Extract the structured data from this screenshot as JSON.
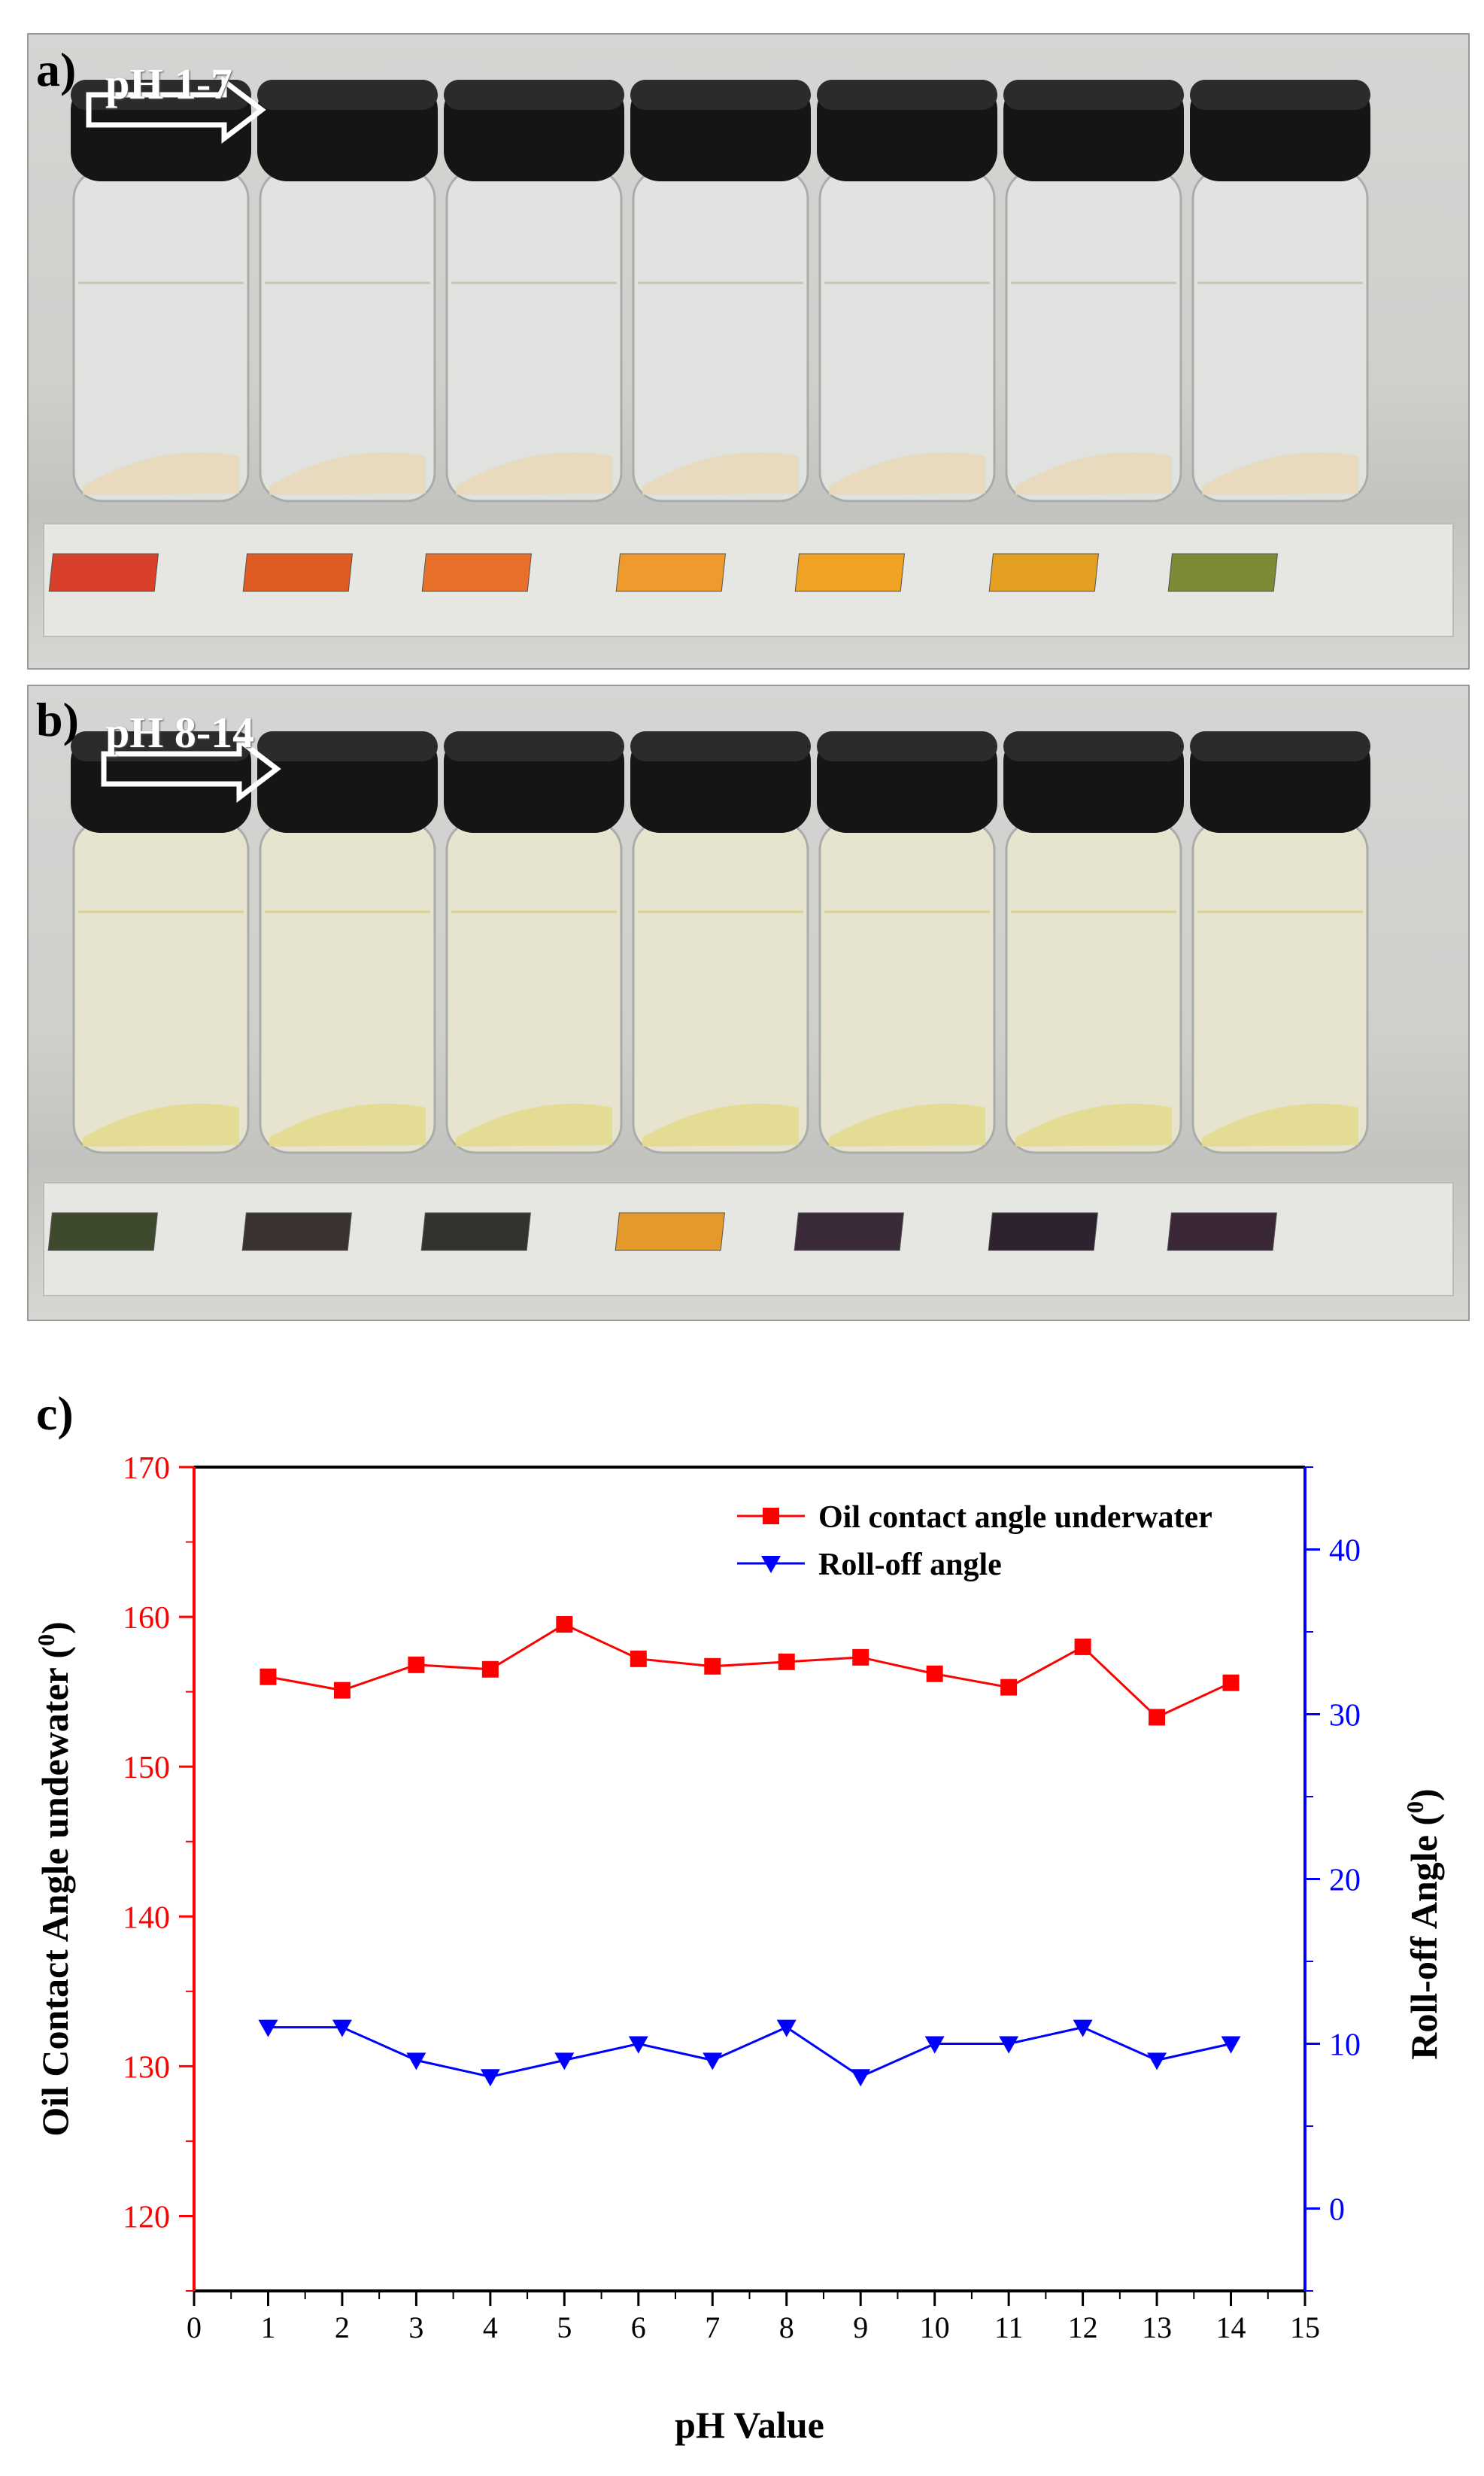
{
  "panel_a": {
    "letter": "a)",
    "ph_range_label": "pH 1-7",
    "vial_count": 7,
    "sample_colors": [
      "#d9402a",
      "#e05a24",
      "#e8702a",
      "#ee9a2c",
      "#f0a225",
      "#e4a020",
      "#7e8a35"
    ]
  },
  "panel_b": {
    "letter": "b)",
    "ph_range_label": "pH 8-14",
    "vial_count": 7,
    "sample_colors": [
      "#3d4a2e",
      "#3a3230",
      "#33332e",
      "#e39a2a",
      "#3b2b3a",
      "#2e2130",
      "#3a2738"
    ]
  },
  "chart_label": "c)",
  "chart_data": {
    "type": "line",
    "x": [
      1,
      2,
      3,
      4,
      5,
      6,
      7,
      8,
      9,
      10,
      11,
      12,
      13,
      14
    ],
    "series": [
      {
        "name": "Oil contact angle underwater",
        "axis": "left",
        "color": "#ff0000",
        "marker": "square",
        "values": [
          156.0,
          155.1,
          156.8,
          156.5,
          159.5,
          157.2,
          156.7,
          157.0,
          157.3,
          156.2,
          155.3,
          158.0,
          153.3,
          155.6
        ]
      },
      {
        "name": "Roll-off angle",
        "axis": "right",
        "color": "#0000ff",
        "marker": "triangle-down",
        "values": [
          11,
          11,
          9,
          8,
          9,
          10,
          9,
          11,
          8,
          10,
          10,
          11,
          9,
          10
        ]
      }
    ],
    "xlabel": "pH Value",
    "ylabel_left": "Oil Contact Angle undewater (",
    "ylabel_left_sup": "0",
    "ylabel_left_close": ")",
    "ylabel_right": "Roll-off Angle (",
    "ylabel_right_sup": "0",
    "ylabel_right_close": ")",
    "xlim": [
      0,
      15
    ],
    "ylim_left": [
      115,
      170
    ],
    "ylim_right": [
      -5,
      45
    ],
    "xticks": [
      0,
      1,
      2,
      3,
      4,
      5,
      6,
      7,
      8,
      9,
      10,
      11,
      12,
      13,
      14,
      15
    ],
    "yticks_left": [
      120,
      130,
      140,
      150,
      160,
      170
    ],
    "yticks_right": [
      0,
      10,
      20,
      30,
      40
    ],
    "legend_position": "top-right",
    "left_axis_color": "#ff0000",
    "right_axis_color": "#0000ff"
  }
}
